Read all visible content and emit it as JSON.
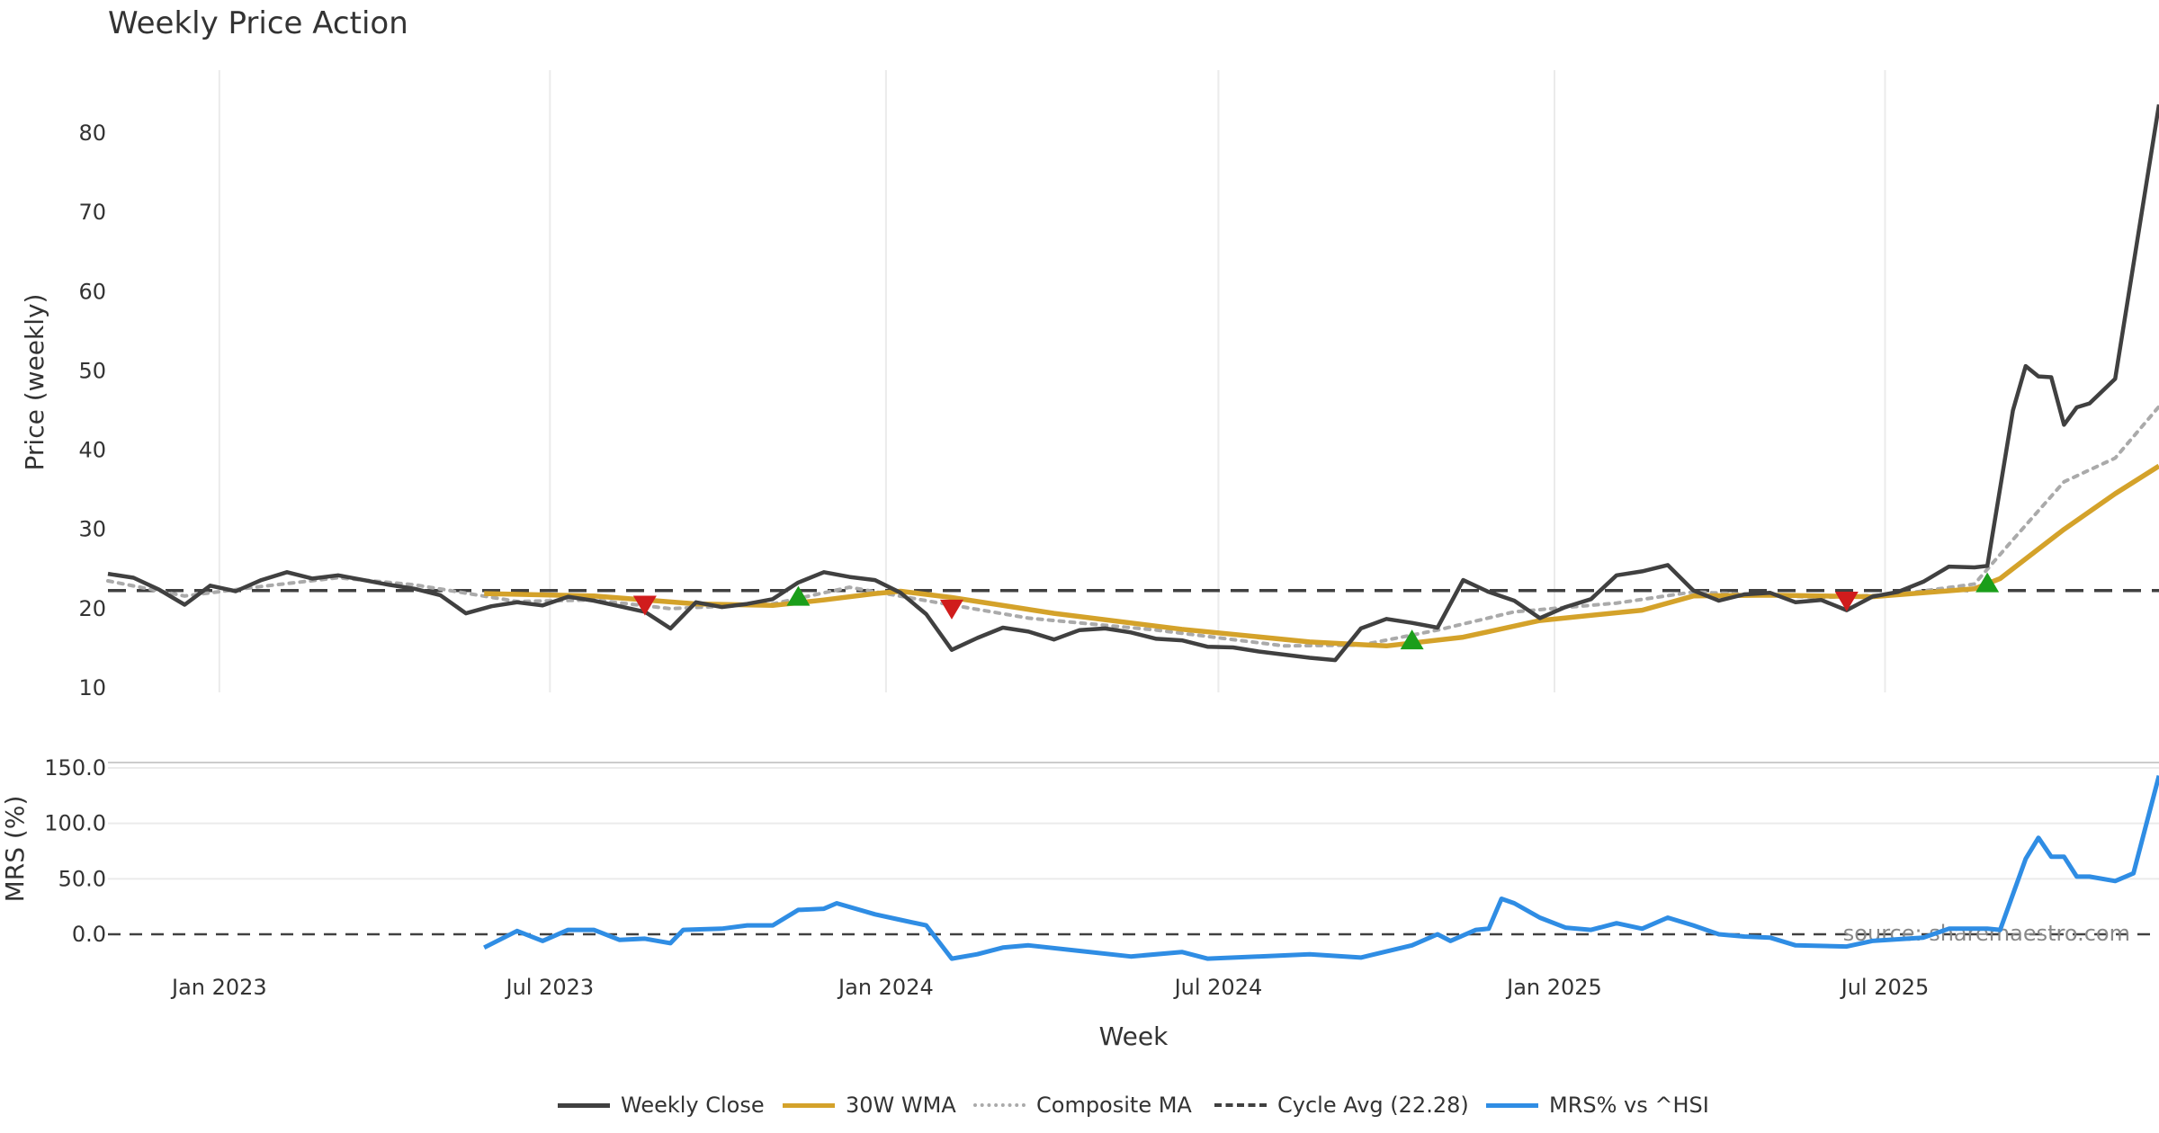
{
  "chart_title": "Weekly Price Action",
  "source_note": "source: sharemaestro.com",
  "legend": [
    {
      "label": "Weekly Close",
      "color": "#404040",
      "style": "solid"
    },
    {
      "label": "30W WMA",
      "color": "#d4a22a",
      "style": "solid"
    },
    {
      "label": "Composite MA",
      "color": "#aaaaaa",
      "style": "dotted"
    },
    {
      "label": "Cycle Avg (22.28)",
      "color": "#404040",
      "style": "dashed"
    },
    {
      "label": "MRS% vs ^HSI",
      "color": "#2f8de4",
      "style": "solid"
    }
  ],
  "chart_data": [
    {
      "type": "line",
      "title": "Weekly Price Action",
      "xlabel": "",
      "ylabel": "Price (weekly)",
      "xlim": [
        "2022-11-01",
        "2025-11-28"
      ],
      "ylim": [
        10,
        88
      ],
      "yticks": [
        10,
        20,
        30,
        40,
        50,
        60,
        70,
        80
      ],
      "grid": "vertical",
      "hline": {
        "name": "Cycle Avg (22.28)",
        "value": 22.28
      },
      "series": [
        {
          "name": "Weekly Close",
          "color": "#404040",
          "points": [
            [
              "2022-11-01",
              24.4
            ],
            [
              "2022-11-15",
              23.9
            ],
            [
              "2022-11-29",
              22.4
            ],
            [
              "2022-12-13",
              20.5
            ],
            [
              "2022-12-27",
              22.9
            ],
            [
              "2023-01-10",
              22.2
            ],
            [
              "2023-01-24",
              23.6
            ],
            [
              "2023-02-07",
              24.6
            ],
            [
              "2023-02-21",
              23.8
            ],
            [
              "2023-03-07",
              24.2
            ],
            [
              "2023-03-21",
              23.6
            ],
            [
              "2023-04-04",
              23.0
            ],
            [
              "2023-04-18",
              22.5
            ],
            [
              "2023-05-02",
              21.7
            ],
            [
              "2023-05-16",
              19.4
            ],
            [
              "2023-05-30",
              20.3
            ],
            [
              "2023-06-13",
              20.8
            ],
            [
              "2023-06-27",
              20.4
            ],
            [
              "2023-07-11",
              21.5
            ],
            [
              "2023-07-25",
              21.0
            ],
            [
              "2023-08-08",
              20.3
            ],
            [
              "2023-08-22",
              19.6
            ],
            [
              "2023-09-05",
              17.5
            ],
            [
              "2023-09-19",
              20.8
            ],
            [
              "2023-10-03",
              20.2
            ],
            [
              "2023-10-17",
              20.6
            ],
            [
              "2023-10-31",
              21.2
            ],
            [
              "2023-11-14",
              23.3
            ],
            [
              "2023-11-28",
              24.6
            ],
            [
              "2023-12-12",
              24.0
            ],
            [
              "2023-12-26",
              23.6
            ],
            [
              "2024-01-09",
              22.0
            ],
            [
              "2024-01-23",
              19.3
            ],
            [
              "2024-02-06",
              14.8
            ],
            [
              "2024-02-20",
              16.3
            ],
            [
              "2024-03-05",
              17.6
            ],
            [
              "2024-03-19",
              17.1
            ],
            [
              "2024-04-02",
              16.1
            ],
            [
              "2024-04-16",
              17.3
            ],
            [
              "2024-04-30",
              17.5
            ],
            [
              "2024-05-14",
              17.0
            ],
            [
              "2024-05-28",
              16.2
            ],
            [
              "2024-06-11",
              16.0
            ],
            [
              "2024-06-25",
              15.2
            ],
            [
              "2024-07-09",
              15.1
            ],
            [
              "2024-07-23",
              14.6
            ],
            [
              "2024-08-06",
              14.2
            ],
            [
              "2024-08-20",
              13.8
            ],
            [
              "2024-09-03",
              13.5
            ],
            [
              "2024-09-17",
              17.5
            ],
            [
              "2024-10-01",
              18.7
            ],
            [
              "2024-10-15",
              18.2
            ],
            [
              "2024-10-29",
              17.6
            ],
            [
              "2024-11-12",
              23.6
            ],
            [
              "2024-11-26",
              22.1
            ],
            [
              "2024-12-10",
              21.0
            ],
            [
              "2024-12-24",
              18.8
            ],
            [
              "2025-01-07",
              20.2
            ],
            [
              "2025-01-21",
              21.2
            ],
            [
              "2025-02-04",
              24.2
            ],
            [
              "2025-02-18",
              24.7
            ],
            [
              "2025-03-04",
              25.5
            ],
            [
              "2025-03-18",
              22.3
            ],
            [
              "2025-04-01",
              21.0
            ],
            [
              "2025-04-15",
              21.8
            ],
            [
              "2025-04-29",
              22.0
            ],
            [
              "2025-05-13",
              20.8
            ],
            [
              "2025-05-27",
              21.1
            ],
            [
              "2025-06-10",
              19.8
            ],
            [
              "2025-06-24",
              21.5
            ],
            [
              "2025-07-08",
              22.1
            ],
            [
              "2025-07-22",
              23.4
            ],
            [
              "2025-08-05",
              25.3
            ],
            [
              "2025-08-19",
              25.2
            ],
            [
              "2025-08-26",
              25.4
            ],
            [
              "2025-09-09",
              45.0
            ],
            [
              "2025-09-16",
              50.6
            ],
            [
              "2025-09-23",
              49.3
            ],
            [
              "2025-09-30",
              49.2
            ],
            [
              "2025-10-07",
              43.2
            ],
            [
              "2025-10-14",
              45.4
            ],
            [
              "2025-10-21",
              45.9
            ],
            [
              "2025-11-04",
              49.0
            ],
            [
              "2025-11-28",
              83.6
            ]
          ]
        },
        {
          "name": "30W WMA",
          "color": "#d4a22a",
          "points": [
            [
              "2023-05-26",
              21.9
            ],
            [
              "2023-07-25",
              21.6
            ],
            [
              "2023-09-19",
              20.6
            ],
            [
              "2023-10-31",
              20.4
            ],
            [
              "2023-11-28",
              21.1
            ],
            [
              "2023-12-26",
              21.9
            ],
            [
              "2024-01-09",
              22.2
            ],
            [
              "2024-02-06",
              21.4
            ],
            [
              "2024-04-02",
              19.4
            ],
            [
              "2024-06-11",
              17.4
            ],
            [
              "2024-08-20",
              15.8
            ],
            [
              "2024-10-01",
              15.3
            ],
            [
              "2024-11-12",
              16.4
            ],
            [
              "2024-12-24",
              18.5
            ],
            [
              "2025-02-18",
              19.8
            ],
            [
              "2025-03-18",
              21.6
            ],
            [
              "2025-04-29",
              21.7
            ],
            [
              "2025-06-24",
              21.5
            ],
            [
              "2025-08-19",
              22.5
            ],
            [
              "2025-09-02",
              23.8
            ],
            [
              "2025-10-07",
              30.0
            ],
            [
              "2025-11-04",
              34.5
            ],
            [
              "2025-11-28",
              38.0
            ]
          ]
        },
        {
          "name": "Composite MA",
          "color": "#aaaaaa",
          "points": [
            [
              "2022-11-01",
              23.5
            ],
            [
              "2022-12-13",
              21.6
            ],
            [
              "2023-01-24",
              22.8
            ],
            [
              "2023-03-07",
              23.9
            ],
            [
              "2023-04-18",
              23.0
            ],
            [
              "2023-06-13",
              20.9
            ],
            [
              "2023-07-25",
              21.1
            ],
            [
              "2023-09-05",
              20.0
            ],
            [
              "2023-10-31",
              20.6
            ],
            [
              "2023-12-12",
              22.7
            ],
            [
              "2024-01-23",
              21.0
            ],
            [
              "2024-03-19",
              18.8
            ],
            [
              "2024-05-28",
              17.3
            ],
            [
              "2024-08-06",
              15.3
            ],
            [
              "2024-09-17",
              15.4
            ],
            [
              "2024-10-29",
              17.3
            ],
            [
              "2024-12-10",
              19.6
            ],
            [
              "2025-02-04",
              20.7
            ],
            [
              "2025-03-18",
              22.1
            ],
            [
              "2025-05-27",
              21.4
            ],
            [
              "2025-07-08",
              21.8
            ],
            [
              "2025-08-19",
              23.1
            ],
            [
              "2025-09-09",
              28.7
            ],
            [
              "2025-10-07",
              36.0
            ],
            [
              "2025-11-04",
              39.0
            ],
            [
              "2025-11-28",
              45.5
            ]
          ]
        }
      ],
      "markers": [
        {
          "type": "sell",
          "x": "2023-08-22",
          "y": 20.5
        },
        {
          "type": "buy",
          "x": "2023-11-14",
          "y": 21.5
        },
        {
          "type": "sell",
          "x": "2024-02-06",
          "y": 20.0
        },
        {
          "type": "buy",
          "x": "2024-10-15",
          "y": 16.0
        },
        {
          "type": "sell",
          "x": "2025-06-10",
          "y": 21.0
        },
        {
          "type": "buy",
          "x": "2025-08-26",
          "y": 23.2
        }
      ]
    },
    {
      "type": "line",
      "title": "",
      "xlabel": "Week",
      "ylabel": "MRS (%)",
      "xlim": [
        "2022-11-01",
        "2025-11-28"
      ],
      "ylim": [
        -25,
        155
      ],
      "yticks": [
        "0.0",
        "50.0",
        "100.0",
        "150.0"
      ],
      "xticks": [
        "Jan 2023",
        "Jul 2023",
        "Jan 2024",
        "Jul 2024",
        "Jan 2025",
        "Jul 2025"
      ],
      "grid": "horizontal",
      "hline": {
        "name": "zero line",
        "value": 0
      },
      "series": [
        {
          "name": "MRS% vs ^HSI",
          "color": "#2f8de4",
          "points": [
            [
              "2023-05-26",
              -12
            ],
            [
              "2023-06-13",
              3
            ],
            [
              "2023-06-27",
              -6
            ],
            [
              "2023-07-11",
              4
            ],
            [
              "2023-07-25",
              4
            ],
            [
              "2023-08-08",
              -5
            ],
            [
              "2023-08-22",
              -4
            ],
            [
              "2023-09-05",
              -8
            ],
            [
              "2023-09-12",
              4
            ],
            [
              "2023-10-03",
              5
            ],
            [
              "2023-10-17",
              8
            ],
            [
              "2023-10-31",
              8
            ],
            [
              "2023-11-14",
              22
            ],
            [
              "2023-11-28",
              23
            ],
            [
              "2023-12-05",
              28
            ],
            [
              "2023-12-26",
              18
            ],
            [
              "2024-01-09",
              13
            ],
            [
              "2024-01-23",
              8
            ],
            [
              "2024-02-06",
              -22
            ],
            [
              "2024-02-20",
              -18
            ],
            [
              "2024-03-05",
              -12
            ],
            [
              "2024-03-19",
              -10
            ],
            [
              "2024-04-16",
              -15
            ],
            [
              "2024-05-14",
              -20
            ],
            [
              "2024-06-11",
              -16
            ],
            [
              "2024-06-25",
              -22
            ],
            [
              "2024-07-23",
              -20
            ],
            [
              "2024-08-20",
              -18
            ],
            [
              "2024-09-17",
              -21
            ],
            [
              "2024-10-15",
              -10
            ],
            [
              "2024-10-29",
              0
            ],
            [
              "2024-11-05",
              -6
            ],
            [
              "2024-11-19",
              4
            ],
            [
              "2024-11-26",
              5
            ],
            [
              "2024-12-03",
              32
            ],
            [
              "2024-12-10",
              28
            ],
            [
              "2024-12-24",
              15
            ],
            [
              "2025-01-07",
              6
            ],
            [
              "2025-01-21",
              4
            ],
            [
              "2025-02-04",
              10
            ],
            [
              "2025-02-18",
              5
            ],
            [
              "2025-03-04",
              15
            ],
            [
              "2025-03-18",
              8
            ],
            [
              "2025-04-01",
              0
            ],
            [
              "2025-04-15",
              -2
            ],
            [
              "2025-04-29",
              -3
            ],
            [
              "2025-05-13",
              -10
            ],
            [
              "2025-06-10",
              -11
            ],
            [
              "2025-06-24",
              -6
            ],
            [
              "2025-07-22",
              -3
            ],
            [
              "2025-08-05",
              5
            ],
            [
              "2025-08-26",
              5
            ],
            [
              "2025-09-02",
              4
            ],
            [
              "2025-09-16",
              68
            ],
            [
              "2025-09-23",
              87
            ],
            [
              "2025-09-30",
              70
            ],
            [
              "2025-10-07",
              70
            ],
            [
              "2025-10-14",
              52
            ],
            [
              "2025-10-21",
              52
            ],
            [
              "2025-11-04",
              48
            ],
            [
              "2025-11-14",
              55
            ],
            [
              "2025-11-28",
              143
            ]
          ]
        }
      ]
    }
  ]
}
